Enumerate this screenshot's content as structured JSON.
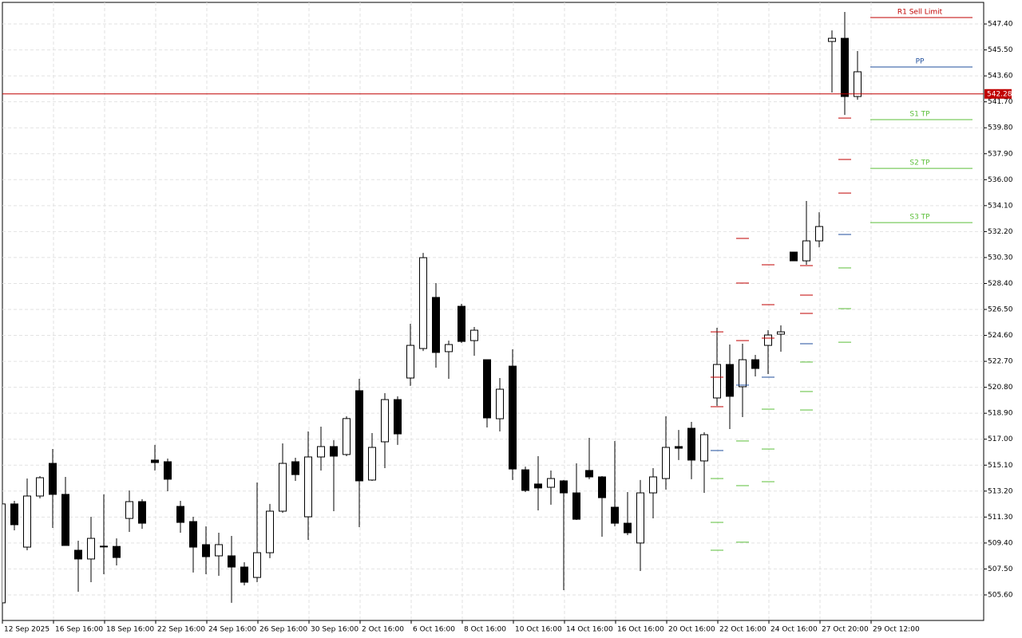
{
  "chart_data": {
    "type": "candlestick",
    "categories": [
      "12 Sep 2025",
      null,
      null,
      null,
      "16 Sep 16:00",
      null,
      null,
      null,
      "18 Sep 16:00",
      null,
      null,
      null,
      "22 Sep 16:00",
      null,
      null,
      null,
      "24 Sep 16:00",
      null,
      null,
      null,
      "26 Sep 16:00",
      null,
      null,
      null,
      "30 Sep 16:00",
      null,
      null,
      null,
      "2 Oct 16:00",
      null,
      null,
      null,
      "6 Oct 16:00",
      null,
      null,
      null,
      "8 Oct 16:00",
      null,
      null,
      null,
      "10 Oct 16:00",
      null,
      null,
      null,
      "14 Oct 16:00",
      null,
      null,
      null,
      "16 Oct 16:00",
      null,
      null,
      null,
      "20 Oct 16:00",
      null,
      null,
      null,
      "22 Oct 16:00",
      null,
      null,
      null,
      "24 Oct 16:00",
      null,
      null,
      null,
      "27 Oct 20:00",
      null,
      null,
      null,
      "29 Oct 12:00",
      null,
      null,
      null,
      null,
      null,
      null,
      null,
      null
    ],
    "open": [
      505.02,
      512.26,
      509.1,
      512.84,
      515.23,
      512.96,
      508.87,
      508.23,
      509.15,
      509.15,
      511.2,
      512.43,
      515.47,
      515.35,
      512.08,
      510.97,
      509.28,
      508.46,
      508.46,
      507.64,
      506.88,
      508.69,
      511.73,
      515.35,
      511.32,
      515.7,
      516.46,
      515.88,
      520.55,
      514.01,
      516.81,
      519.9,
      521.48,
      523.64,
      527.38,
      523.41,
      526.73,
      524.22,
      522.82,
      518.5,
      522.35,
      514.76,
      513.72,
      513.48,
      513.95,
      513.07,
      514.71,
      514.24,
      512.02,
      510.85,
      509.4,
      513.07,
      514.12,
      516.46,
      517.8,
      515.41,
      520.02,
      522.47,
      520.84,
      522.82,
      523.87,
      524.69,
      530.7,
      530.06,
      531.52,
      546.12,
      546.35,
      542.09,
      null,
      null,
      null,
      null,
      null,
      null,
      null,
      null,
      null
    ],
    "high": [
      512.4,
      512.49,
      514.12,
      514.3,
      516.28,
      514.24,
      509.57,
      511.32,
      512.96,
      509.74,
      513.25,
      512.61,
      516.58,
      515.58,
      512.49,
      511.32,
      510.62,
      510.15,
      509.92,
      507.99,
      513.83,
      512.26,
      516.69,
      515.64,
      517.57,
      517.92,
      516.93,
      518.68,
      521.42,
      517.45,
      520.37,
      520.14,
      525.45,
      530.64,
      528.43,
      524.22,
      526.91,
      525.22,
      522.82,
      521.48,
      523.58,
      514.99,
      515.76,
      514.71,
      514.01,
      515.23,
      517.1,
      514.3,
      516.87,
      513.13,
      514.01,
      514.88,
      518.68,
      517.68,
      518.27,
      517.51,
      525.16,
      523.93,
      523.99,
      523.17,
      524.98,
      525.33,
      530.7,
      534.44,
      533.62,
      546.93,
      548.28,
      545.42,
      null,
      null,
      null,
      null,
      null,
      null,
      null,
      null,
      null
    ],
    "low": [
      504.9,
      510.33,
      508.87,
      512.67,
      510.5,
      509.22,
      505.83,
      506.53,
      507.12,
      507.76,
      510.21,
      510.44,
      514.71,
      513.19,
      510.15,
      507.24,
      507.12,
      507.0,
      505.02,
      506.3,
      506.53,
      508.29,
      511.61,
      513.95,
      509.63,
      514.71,
      511.73,
      515.76,
      510.56,
      513.95,
      514.88,
      516.58,
      520.9,
      523.46,
      522.24,
      521.42,
      524.05,
      523.11,
      517.86,
      517.57,
      514.01,
      513.13,
      511.79,
      512.2,
      505.95,
      511.09,
      514.07,
      509.86,
      510.62,
      509.98,
      507.35,
      511.2,
      513.31,
      515.47,
      514.07,
      513.07,
      519.44,
      517.74,
      518.62,
      521.6,
      521.77,
      523.41,
      530.06,
      529.77,
      531.05,
      542.38,
      540.74,
      541.86,
      null,
      null,
      null,
      null,
      null,
      null,
      null,
      null,
      null
    ],
    "close": [
      512.26,
      510.74,
      512.84,
      514.18,
      512.96,
      509.22,
      508.23,
      509.74,
      509.17,
      508.34,
      512.43,
      510.85,
      515.29,
      514.07,
      510.91,
      509.1,
      508.4,
      509.28,
      507.64,
      506.53,
      508.69,
      511.73,
      515.23,
      514.41,
      515.7,
      516.46,
      515.76,
      518.51,
      513.95,
      516.4,
      519.9,
      517.39,
      523.87,
      530.29,
      523.35,
      523.93,
      524.16,
      524.98,
      518.56,
      520.66,
      514.82,
      513.25,
      513.43,
      514.12,
      513.07,
      511.14,
      514.24,
      512.72,
      510.85,
      510.15,
      513.07,
      514.24,
      516.4,
      516.34,
      515.47,
      517.33,
      522.47,
      520.14,
      522.82,
      522.18,
      524.63,
      524.86,
      530.06,
      531.52,
      532.57,
      546.35,
      542.09,
      543.9,
      null,
      null,
      null,
      null,
      null,
      null,
      null,
      null,
      null
    ],
    "up_color": "#ffffff",
    "down_color": "#000000",
    "levels": [
      {
        "color": "#c00000",
        "values": [
          null,
          null,
          null,
          null,
          null,
          null,
          null,
          null,
          null,
          null,
          null,
          null,
          null,
          null,
          null,
          null,
          null,
          null,
          null,
          null,
          null,
          null,
          null,
          null,
          null,
          null,
          null,
          null,
          null,
          null,
          null,
          null,
          null,
          null,
          null,
          null,
          null,
          null,
          null,
          null,
          null,
          null,
          null,
          null,
          null,
          null,
          null,
          null,
          null,
          null,
          null,
          null,
          null,
          null,
          null,
          null,
          524.86,
          null,
          531.7,
          null,
          529.77,
          null,
          null,
          529.71,
          null,
          null,
          540.51,
          null,
          null,
          null,
          null,
          null,
          null,
          null,
          null,
          null,
          null
        ]
      },
      {
        "color": "#c00000",
        "values": [
          null,
          null,
          null,
          null,
          null,
          null,
          null,
          null,
          null,
          null,
          null,
          null,
          null,
          null,
          null,
          null,
          null,
          null,
          null,
          null,
          null,
          null,
          null,
          null,
          null,
          null,
          null,
          null,
          null,
          null,
          null,
          null,
          null,
          null,
          null,
          null,
          null,
          null,
          null,
          null,
          null,
          null,
          null,
          null,
          null,
          null,
          null,
          null,
          null,
          null,
          null,
          null,
          null,
          null,
          null,
          null,
          521.54,
          null,
          528.43,
          null,
          526.85,
          null,
          null,
          527.55,
          null,
          null,
          537.48,
          null,
          null,
          null,
          null,
          null,
          null,
          null,
          null,
          null,
          null
        ]
      },
      {
        "color": "#c00000",
        "values": [
          null,
          null,
          null,
          null,
          null,
          null,
          null,
          null,
          null,
          null,
          null,
          null,
          null,
          null,
          null,
          null,
          null,
          null,
          null,
          null,
          null,
          null,
          null,
          null,
          null,
          null,
          null,
          null,
          null,
          null,
          null,
          null,
          null,
          null,
          null,
          null,
          null,
          null,
          null,
          null,
          null,
          null,
          null,
          null,
          null,
          null,
          null,
          null,
          null,
          null,
          null,
          null,
          null,
          null,
          null,
          null,
          519.38,
          null,
          524.22,
          null,
          524.4,
          null,
          null,
          526.21,
          null,
          null,
          535.02,
          null,
          null,
          null,
          null,
          null,
          null,
          null,
          null,
          null,
          null
        ]
      },
      {
        "color": "#1f4e9c",
        "values": [
          null,
          null,
          null,
          null,
          null,
          null,
          null,
          null,
          null,
          null,
          null,
          null,
          null,
          null,
          null,
          null,
          null,
          null,
          null,
          null,
          null,
          null,
          null,
          null,
          null,
          null,
          null,
          null,
          null,
          null,
          null,
          null,
          null,
          null,
          null,
          null,
          null,
          null,
          null,
          null,
          null,
          null,
          null,
          null,
          null,
          null,
          null,
          null,
          null,
          null,
          null,
          null,
          null,
          null,
          null,
          null,
          516.17,
          null,
          520.96,
          null,
          521.54,
          null,
          null,
          523.99,
          null,
          null,
          531.99,
          null,
          null,
          null,
          null,
          null,
          null,
          null,
          null,
          null,
          null
        ]
      },
      {
        "color": "#5cbf3a",
        "values": [
          null,
          null,
          null,
          null,
          null,
          null,
          null,
          null,
          null,
          null,
          null,
          null,
          null,
          null,
          null,
          null,
          null,
          null,
          null,
          null,
          null,
          null,
          null,
          null,
          null,
          null,
          null,
          null,
          null,
          null,
          null,
          null,
          null,
          null,
          null,
          null,
          null,
          null,
          null,
          null,
          null,
          null,
          null,
          null,
          null,
          null,
          null,
          null,
          null,
          null,
          null,
          null,
          null,
          null,
          null,
          null,
          514.12,
          null,
          516.87,
          null,
          519.2,
          null,
          null,
          522.65,
          null,
          null,
          529.54,
          null,
          null,
          null,
          null,
          null,
          null,
          null,
          null,
          null,
          null
        ]
      },
      {
        "color": "#5cbf3a",
        "values": [
          null,
          null,
          null,
          null,
          null,
          null,
          null,
          null,
          null,
          null,
          null,
          null,
          null,
          null,
          null,
          null,
          null,
          null,
          null,
          null,
          null,
          null,
          null,
          null,
          null,
          null,
          null,
          null,
          null,
          null,
          null,
          null,
          null,
          null,
          null,
          null,
          null,
          null,
          null,
          null,
          null,
          null,
          null,
          null,
          null,
          null,
          null,
          null,
          null,
          null,
          null,
          null,
          null,
          null,
          null,
          null,
          510.91,
          null,
          513.6,
          null,
          516.28,
          null,
          null,
          520.49,
          null,
          null,
          526.56,
          null,
          null,
          null,
          null,
          null,
          null,
          null,
          null,
          null,
          null
        ]
      },
      {
        "color": "#5cbf3a",
        "values": [
          null,
          null,
          null,
          null,
          null,
          null,
          null,
          null,
          null,
          null,
          null,
          null,
          null,
          null,
          null,
          null,
          null,
          null,
          null,
          null,
          null,
          null,
          null,
          null,
          null,
          null,
          null,
          null,
          null,
          null,
          null,
          null,
          null,
          null,
          null,
          null,
          null,
          null,
          null,
          null,
          null,
          null,
          null,
          null,
          null,
          null,
          null,
          null,
          null,
          null,
          null,
          null,
          null,
          null,
          null,
          null,
          508.87,
          null,
          509.46,
          null,
          513.89,
          null,
          null,
          519.14,
          null,
          null,
          524.1,
          null,
          null,
          null,
          null,
          null,
          null,
          null,
          null,
          null,
          null
        ]
      }
    ],
    "future_levels": [
      {
        "label": "R1 Sell Limit",
        "color": "#c00000",
        "value": 547.87
      },
      {
        "label": "PP",
        "color": "#1f4e9c",
        "value": 544.25
      },
      {
        "label": "S1 TP",
        "color": "#5cbf3a",
        "value": 540.4
      },
      {
        "label": "S2 TP",
        "color": "#5cbf3a",
        "value": 536.83
      },
      {
        "label": "S3 TP",
        "color": "#5cbf3a",
        "value": 532.86
      }
    ],
    "current_price": 542.28,
    "current_price_color": "#c00000",
    "ylim": [
      503.73,
      548.98
    ],
    "yticks": [
      {
        "value": 505.6,
        "label": "505.60"
      },
      {
        "value": 507.5,
        "label": "507.50"
      },
      {
        "value": 509.4,
        "label": "509.40"
      },
      {
        "value": 511.3,
        "label": "511.30"
      },
      {
        "value": 513.2,
        "label": "513.20"
      },
      {
        "value": 515.1,
        "label": "515.10"
      },
      {
        "value": 517,
        "label": "517.00"
      },
      {
        "value": 518.9,
        "label": "518.90"
      },
      {
        "value": 520.8,
        "label": "520.80"
      },
      {
        "value": 522.7,
        "label": "522.70"
      },
      {
        "value": 524.6,
        "label": "524.60"
      },
      {
        "value": 526.5,
        "label": "526.50"
      },
      {
        "value": 528.4,
        "label": "528.40"
      },
      {
        "value": 530.3,
        "label": "530.30"
      },
      {
        "value": 532.2,
        "label": "532.20"
      },
      {
        "value": 534.1,
        "label": "534.10"
      },
      {
        "value": 536,
        "label": "536.00"
      },
      {
        "value": 537.9,
        "label": "537.90"
      },
      {
        "value": 539.8,
        "label": "539.80"
      },
      {
        "value": 541.7,
        "label": "541.70"
      },
      {
        "value": 543.6,
        "label": "543.60"
      },
      {
        "value": 545.5,
        "label": "545.50"
      },
      {
        "value": 547.4,
        "label": "547.40"
      }
    ],
    "grid": true
  }
}
